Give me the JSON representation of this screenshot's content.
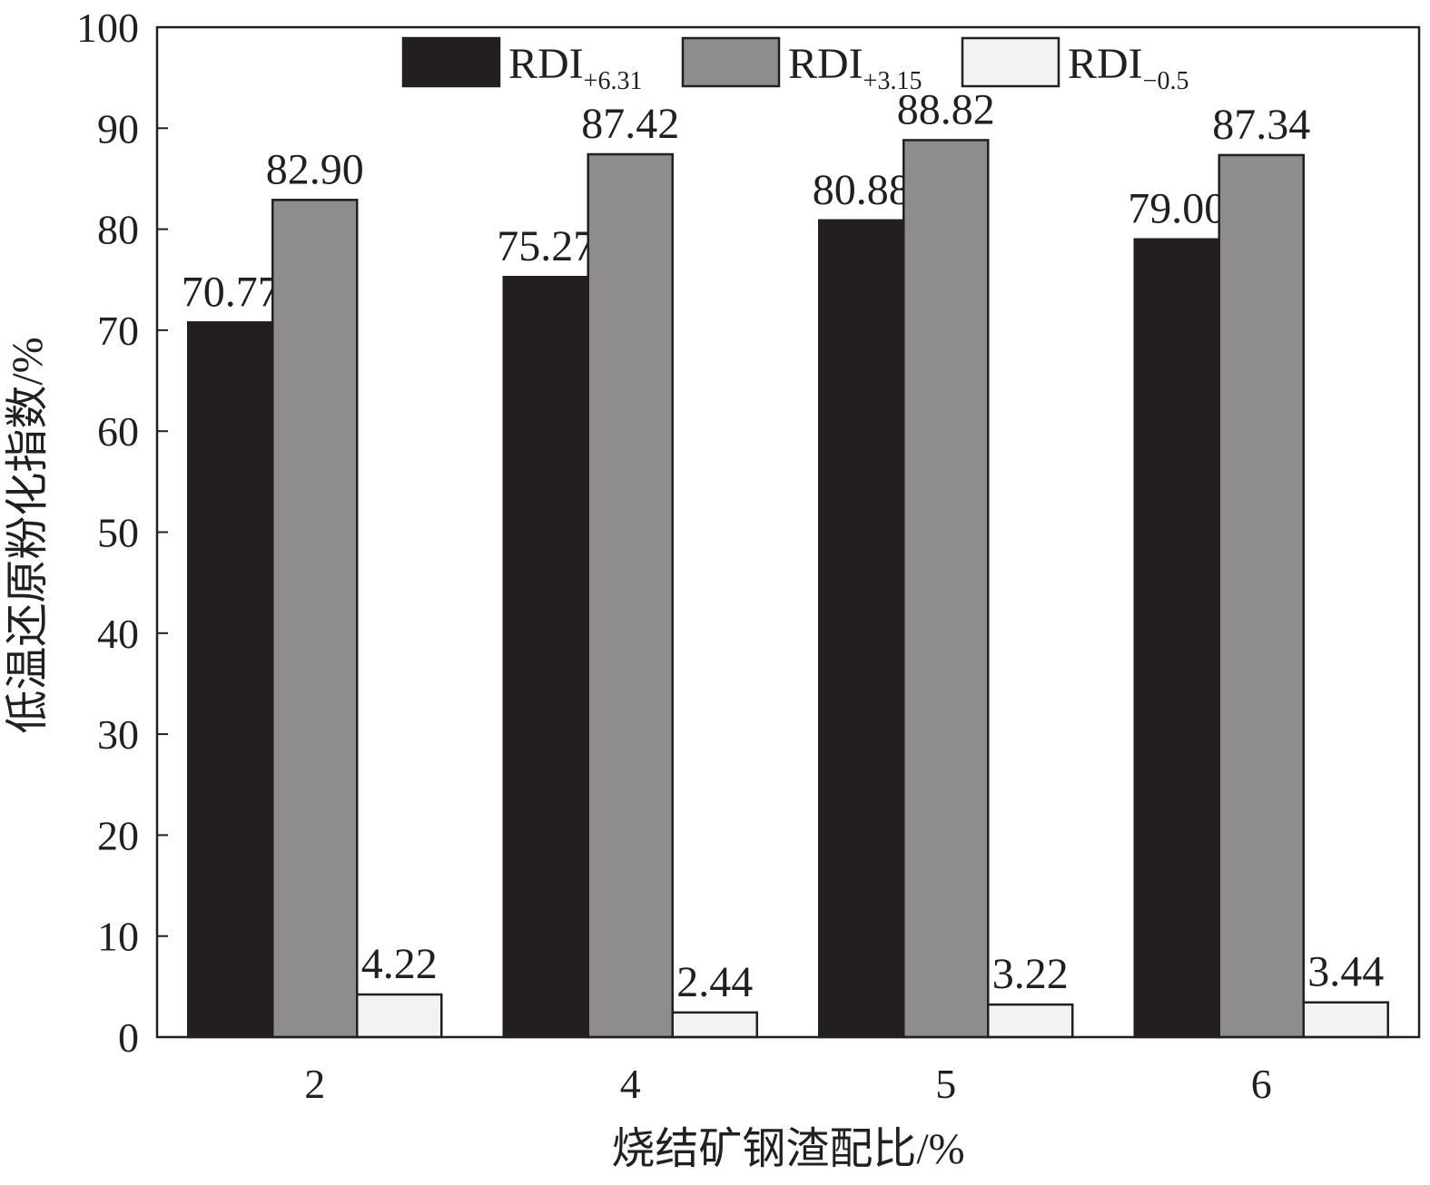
{
  "chart_data": {
    "type": "bar",
    "x_label": "烧结矿钢渣配比/%",
    "y_label": "低温还原粉化指数/%",
    "categories": [
      "2",
      "4",
      "5",
      "6"
    ],
    "series": [
      {
        "name": "RDI",
        "subscript": "+6.31",
        "color": "#231f20",
        "values": [
          70.77,
          75.27,
          80.88,
          79.0
        ],
        "value_labels": [
          "70.77",
          "75.27",
          "80.88",
          "79.00"
        ]
      },
      {
        "name": "RDI",
        "subscript": "+3.15",
        "color": "#8e8c8d",
        "values": [
          82.9,
          87.42,
          88.82,
          87.34
        ],
        "value_labels": [
          "82.90",
          "87.42",
          "88.82",
          "87.34"
        ]
      },
      {
        "name": "RDI",
        "subscript": "−0.5",
        "color": "#f2f2f2",
        "values": [
          4.22,
          2.44,
          3.22,
          3.44
        ],
        "value_labels": [
          "4.22",
          "2.44",
          "3.22",
          "3.44"
        ]
      }
    ],
    "ylim": [
      0,
      100
    ],
    "yticks": [
      0,
      10,
      20,
      30,
      40,
      50,
      60,
      70,
      80,
      90,
      100
    ],
    "legend": "top",
    "grid": false
  }
}
